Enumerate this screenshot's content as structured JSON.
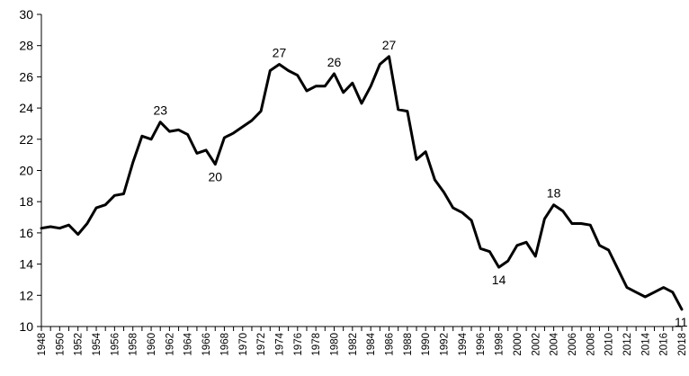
{
  "chart_data": {
    "type": "line",
    "title": "",
    "xlabel": "",
    "ylabel": "",
    "xlim": [
      1948,
      2018
    ],
    "ylim": [
      10,
      30
    ],
    "yticks": [
      10,
      12,
      14,
      16,
      18,
      20,
      22,
      24,
      26,
      28,
      30
    ],
    "xticks": [
      1948,
      1950,
      1952,
      1954,
      1956,
      1958,
      1960,
      1962,
      1964,
      1966,
      1968,
      1970,
      1972,
      1974,
      1976,
      1978,
      1980,
      1982,
      1984,
      1986,
      1988,
      1990,
      1992,
      1994,
      1996,
      1998,
      2000,
      2002,
      2004,
      2006,
      2008,
      2010,
      2012,
      2014,
      2016,
      2018
    ],
    "grid": false,
    "legend": "none",
    "line_color": "#000000",
    "series": [
      {
        "x": [
          1948,
          1949,
          1950,
          1951,
          1952,
          1953,
          1954,
          1955,
          1956,
          1957,
          1958,
          1959,
          1960,
          1961,
          1962,
          1963,
          1964,
          1965,
          1966,
          1967,
          1968,
          1969,
          1970,
          1971,
          1972,
          1973,
          1974,
          1975,
          1976,
          1977,
          1978,
          1979,
          1980,
          1981,
          1982,
          1983,
          1984,
          1985,
          1986,
          1987,
          1988,
          1989,
          1990,
          1991,
          1992,
          1993,
          1994,
          1995,
          1996,
          1997,
          1998,
          1999,
          2000,
          2001,
          2002,
          2003,
          2004,
          2005,
          2006,
          2007,
          2008,
          2009,
          2010,
          2011,
          2012,
          2013,
          2014,
          2015,
          2016,
          2017,
          2018
        ],
        "values": [
          16.3,
          16.4,
          16.3,
          16.5,
          15.9,
          16.6,
          17.6,
          17.8,
          18.4,
          18.5,
          20.5,
          22.2,
          22.0,
          23.1,
          22.5,
          22.6,
          22.3,
          21.1,
          21.3,
          20.4,
          22.1,
          22.4,
          22.8,
          23.2,
          23.8,
          26.4,
          26.8,
          26.4,
          26.1,
          25.1,
          25.4,
          25.4,
          26.2,
          25.0,
          25.6,
          24.3,
          25.4,
          26.8,
          27.3,
          23.9,
          23.8,
          20.7,
          21.2,
          19.4,
          18.6,
          17.6,
          17.3,
          16.8,
          15.0,
          14.8,
          13.8,
          14.2,
          15.2,
          15.4,
          14.5,
          16.9,
          17.8,
          17.4,
          16.6,
          16.6,
          16.5,
          15.2,
          14.9,
          13.7,
          12.5,
          12.2,
          11.9,
          12.2,
          12.5,
          12.2,
          11.1
        ]
      }
    ],
    "annotations": [
      {
        "text": "23",
        "x": 1961,
        "y": 23.1,
        "pos": "above"
      },
      {
        "text": "20",
        "x": 1967,
        "y": 20.4,
        "pos": "below"
      },
      {
        "text": "27",
        "x": 1974,
        "y": 26.8,
        "pos": "above"
      },
      {
        "text": "26",
        "x": 1980,
        "y": 26.2,
        "pos": "above"
      },
      {
        "text": "27",
        "x": 1986,
        "y": 27.3,
        "pos": "above"
      },
      {
        "text": "14",
        "x": 1998,
        "y": 13.8,
        "pos": "below"
      },
      {
        "text": "18",
        "x": 2004,
        "y": 17.8,
        "pos": "above"
      },
      {
        "text": "11",
        "x": 2018,
        "y": 11.1,
        "pos": "below"
      }
    ]
  }
}
